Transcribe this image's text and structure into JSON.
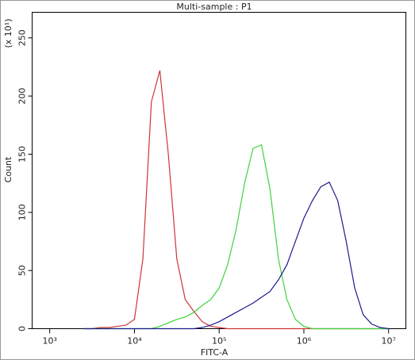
{
  "chart_data": {
    "type": "line",
    "title": "Multi-sample : P1",
    "xlabel": "FITC-A",
    "ylabel": "Count",
    "yunit": "(x 10¹)",
    "xscale": "log",
    "grid": false,
    "x": [
      2512,
      3162,
      3981,
      5012,
      6310,
      7943,
      10000,
      12589,
      15849,
      19953,
      25119,
      31623,
      39811,
      50119,
      63096,
      79433,
      100000,
      125893,
      158489,
      199526,
      251189,
      316228,
      398107,
      501187,
      630957,
      794328,
      1000000,
      1258925,
      1584893,
      1995262,
      2511886,
      3162278,
      3981072,
      5011872,
      6309573,
      7943282,
      10000000
    ],
    "series": [
      {
        "color": "#d03434",
        "values": [
          0,
          0,
          1,
          1,
          2,
          3,
          8,
          60,
          195,
          222,
          150,
          60,
          25,
          15,
          6,
          2,
          1,
          0,
          0,
          0,
          0,
          0,
          0,
          0,
          0,
          0,
          0,
          0,
          0,
          0,
          0,
          0,
          0,
          0,
          0,
          0,
          0
        ]
      },
      {
        "color": "#3ed23e",
        "values": [
          0,
          0,
          0,
          0,
          0,
          0,
          0,
          0,
          0,
          2,
          5,
          8,
          10,
          14,
          20,
          25,
          35,
          55,
          85,
          125,
          155,
          158,
          120,
          60,
          25,
          8,
          2,
          0,
          0,
          0,
          0,
          0,
          0,
          0,
          0,
          0,
          0
        ]
      },
      {
        "color": "#1c1c8c",
        "values": [
          0,
          0,
          0,
          0,
          0,
          0,
          0,
          0,
          0,
          0,
          0,
          0,
          0,
          0,
          1,
          3,
          6,
          10,
          14,
          18,
          22,
          27,
          32,
          42,
          55,
          75,
          95,
          110,
          122,
          126,
          110,
          75,
          35,
          12,
          4,
          1,
          0
        ]
      }
    ],
    "xlim": [
      620,
      16000000
    ],
    "xticks": [
      {
        "value": 1000,
        "label": "10³"
      },
      {
        "value": 10000,
        "label": "10⁴"
      },
      {
        "value": 100000,
        "label": "10⁵"
      },
      {
        "value": 1000000,
        "label": "10⁶"
      },
      {
        "value": 10000000,
        "label": "10⁷"
      }
    ],
    "ylim": [
      0,
      272
    ],
    "yticks": [
      0,
      50,
      100,
      150,
      200,
      250
    ]
  }
}
